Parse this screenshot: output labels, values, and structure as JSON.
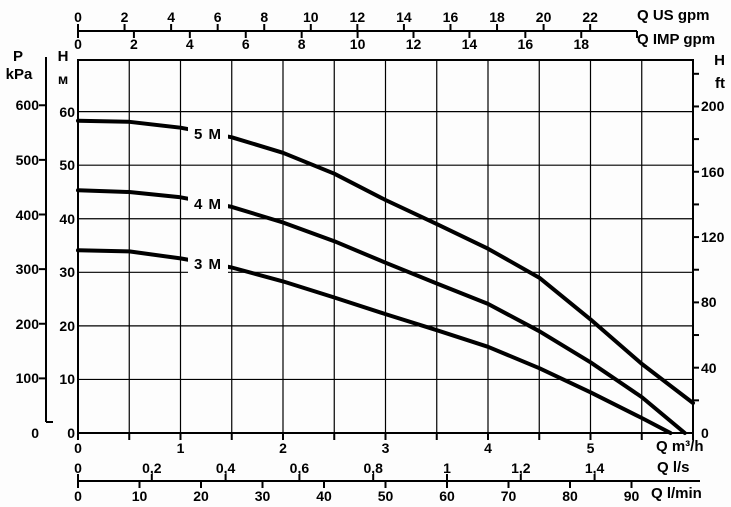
{
  "chart_data": {
    "type": "line",
    "title": "",
    "description": "Pump performance curves: head vs flow in multiple units",
    "grid": true,
    "legend_position": "on-curve",
    "xlim_m3h": [
      0,
      6
    ],
    "ylim_m": [
      0,
      69.6
    ],
    "colors": {
      "ink": "#000000",
      "background": "#fdfdfd"
    },
    "series": [
      {
        "name": "5 M",
        "points": [
          [
            0,
            58.3
          ],
          [
            0.5,
            58.1
          ],
          [
            1,
            57.0
          ],
          [
            1.5,
            55.2
          ],
          [
            2,
            52.3
          ],
          [
            2.5,
            48.4
          ],
          [
            3,
            43.5
          ],
          [
            3.5,
            39.0
          ],
          [
            4,
            34.4
          ],
          [
            4.5,
            29.0
          ],
          [
            5,
            21.2
          ],
          [
            5.5,
            12.9
          ],
          [
            6,
            5.6
          ]
        ]
      },
      {
        "name": "4 M",
        "points": [
          [
            0,
            45.3
          ],
          [
            0.5,
            45.0
          ],
          [
            1,
            44.0
          ],
          [
            1.5,
            42.2
          ],
          [
            2,
            39.3
          ],
          [
            2.5,
            35.8
          ],
          [
            3,
            31.8
          ],
          [
            3.5,
            27.9
          ],
          [
            4,
            24.1
          ],
          [
            4.5,
            19.0
          ],
          [
            5,
            13.2
          ],
          [
            5.5,
            6.7
          ],
          [
            5.92,
            0
          ]
        ]
      },
      {
        "name": "3 M",
        "points": [
          [
            0,
            34.1
          ],
          [
            0.5,
            33.9
          ],
          [
            1,
            32.6
          ],
          [
            1.5,
            30.9
          ],
          [
            2,
            28.3
          ],
          [
            2.5,
            25.3
          ],
          [
            3,
            22.2
          ],
          [
            3.5,
            19.2
          ],
          [
            4,
            16.1
          ],
          [
            4.5,
            12.1
          ],
          [
            5,
            7.6
          ],
          [
            5.5,
            2.8
          ],
          [
            5.78,
            0
          ]
        ]
      }
    ],
    "axes": {
      "top_us": {
        "label": "Q US gpm",
        "ticks": [
          0,
          2,
          4,
          6,
          8,
          10,
          12,
          14,
          16,
          18,
          20,
          22
        ]
      },
      "top_imp": {
        "label": "Q IMP gpm",
        "ticks": [
          0,
          2,
          4,
          6,
          8,
          10,
          12,
          14,
          16,
          18
        ]
      },
      "left_kpa": {
        "label_1": "P",
        "label_2": "kPa",
        "ticks": [
          0,
          100,
          200,
          300,
          400,
          500,
          600
        ]
      },
      "left_m": {
        "label_1": "H",
        "label_2": "м",
        "ticks": [
          0,
          10,
          20,
          30,
          40,
          50,
          60
        ]
      },
      "right_ft": {
        "label_1": "H",
        "label_2": "ft",
        "ticks": [
          0,
          40,
          80,
          120,
          160,
          200
        ]
      },
      "bottom_m3h": {
        "label": "Q m³/h",
        "ticks": [
          0,
          1,
          2,
          3,
          4,
          5
        ]
      },
      "bottom_ls": {
        "label": "Q l/s",
        "ticks": [
          "0",
          "0,2",
          "0,4",
          "0,6",
          "0,8",
          "1",
          "1,2",
          "1,4"
        ]
      },
      "bottom_lmin": {
        "label": "Q l/min",
        "ticks": [
          0,
          10,
          20,
          30,
          40,
          50,
          60,
          70,
          80,
          90
        ]
      }
    }
  }
}
